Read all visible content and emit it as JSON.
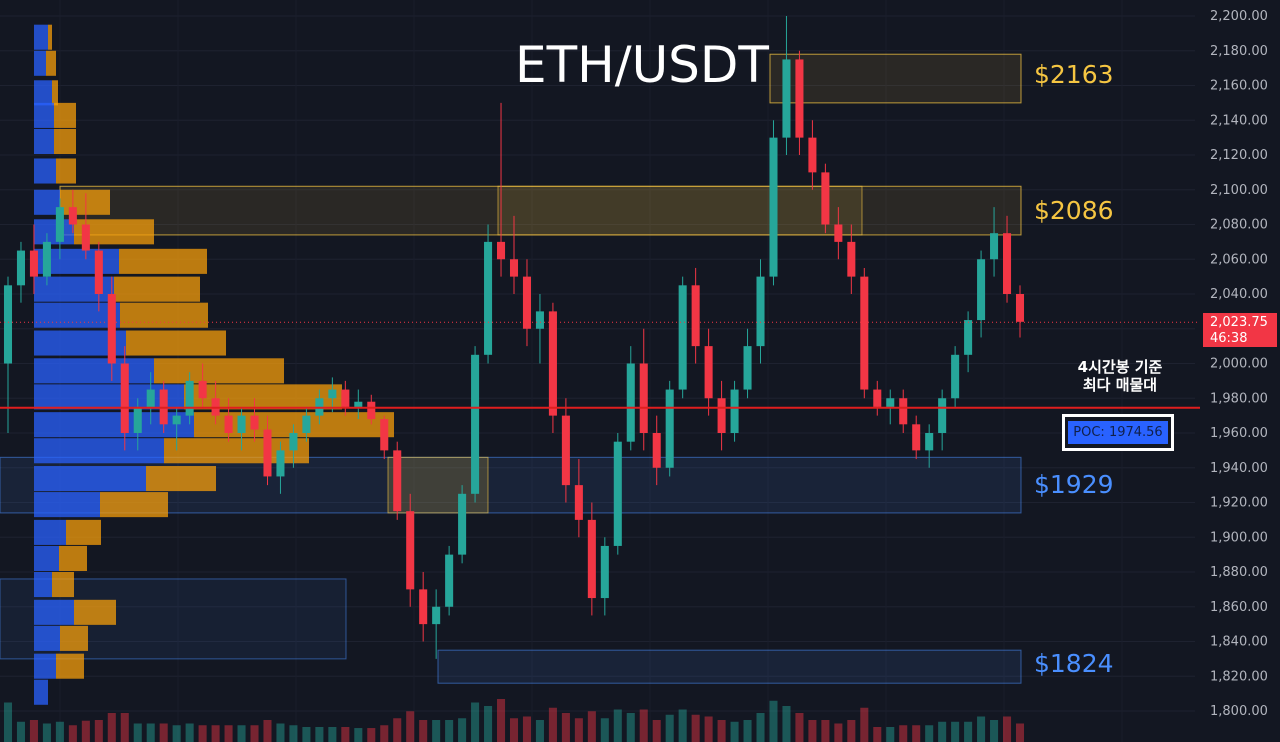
{
  "header": {
    "title": "ETH/USDT"
  },
  "zones": [
    {
      "label": "$2163",
      "low": 2150,
      "high": 2178,
      "color": "gold"
    },
    {
      "label": "$2086",
      "low": 2074,
      "high": 2102,
      "color": "gold"
    },
    {
      "label": "$1929",
      "low": 1914,
      "high": 1946,
      "color": "blue"
    },
    {
      "label": "$1824",
      "low": 1816,
      "high": 1835,
      "color": "blue"
    }
  ],
  "annotation": {
    "line1": "4시간봉 기준",
    "line2": "최다 매물대"
  },
  "poc": {
    "label": "POC: 1974.56",
    "value": 1974.56
  },
  "last_price": {
    "value": "2,023.75",
    "countdown": "46:38",
    "level": 2023.75
  },
  "colors": {
    "up": "#26a69a",
    "down": "#f23645",
    "poc_line": "#e01e1e",
    "profile_blue": "#2962ff",
    "profile_orange": "#f59e0b"
  },
  "chart_data": {
    "type": "candlestick",
    "y_axis": {
      "ylim": [
        1790,
        2205
      ],
      "ticks": [
        "2,200.00",
        "2,180.00",
        "2,160.00",
        "2,140.00",
        "2,120.00",
        "2,100.00",
        "2,080.00",
        "2,060.00",
        "2,040.00",
        "2,020.00",
        "2,000.00",
        "1,980.00",
        "1,960.00",
        "1,940.00",
        "1,920.00",
        "1,900.00",
        "1,880.00",
        "1,860.00",
        "1,840.00",
        "1,820.00",
        "1,800.00"
      ]
    },
    "candles": [
      [
        2000,
        2050,
        1960,
        2045
      ],
      [
        2045,
        2070,
        2035,
        2065
      ],
      [
        2065,
        2080,
        2040,
        2050
      ],
      [
        2050,
        2075,
        2045,
        2070
      ],
      [
        2070,
        2095,
        2060,
        2090
      ],
      [
        2090,
        2100,
        2075,
        2080
      ],
      [
        2080,
        2098,
        2060,
        2065
      ],
      [
        2065,
        2070,
        2030,
        2040
      ],
      [
        2040,
        2050,
        1990,
        2000
      ],
      [
        2000,
        2010,
        1950,
        1960
      ],
      [
        1960,
        1980,
        1950,
        1975
      ],
      [
        1975,
        1995,
        1965,
        1985
      ],
      [
        1985,
        1990,
        1960,
        1965
      ],
      [
        1965,
        1975,
        1950,
        1970
      ],
      [
        1970,
        1995,
        1965,
        1990
      ],
      [
        1990,
        2000,
        1975,
        1980
      ],
      [
        1980,
        1990,
        1965,
        1970
      ],
      [
        1970,
        1980,
        1955,
        1960
      ],
      [
        1960,
        1975,
        1950,
        1970
      ],
      [
        1970,
        1980,
        1955,
        1962
      ],
      [
        1962,
        1970,
        1930,
        1935
      ],
      [
        1935,
        1955,
        1925,
        1950
      ],
      [
        1950,
        1965,
        1940,
        1960
      ],
      [
        1960,
        1975,
        1955,
        1970
      ],
      [
        1970,
        1985,
        1965,
        1980
      ],
      [
        1980,
        1992,
        1972,
        1985
      ],
      [
        1985,
        1990,
        1970,
        1975
      ],
      [
        1975,
        1985,
        1968,
        1978
      ],
      [
        1978,
        1982,
        1965,
        1968
      ],
      [
        1968,
        1970,
        1945,
        1950
      ],
      [
        1950,
        1955,
        1910,
        1915
      ],
      [
        1915,
        1925,
        1860,
        1870
      ],
      [
        1870,
        1880,
        1840,
        1850
      ],
      [
        1850,
        1870,
        1830,
        1860
      ],
      [
        1860,
        1895,
        1855,
        1890
      ],
      [
        1890,
        1930,
        1885,
        1925
      ],
      [
        1925,
        2010,
        1920,
        2005
      ],
      [
        2005,
        2080,
        2000,
        2070
      ],
      [
        2070,
        2150,
        2050,
        2060
      ],
      [
        2060,
        2085,
        2040,
        2050
      ],
      [
        2050,
        2060,
        2010,
        2020
      ],
      [
        2020,
        2040,
        2000,
        2030
      ],
      [
        2030,
        2035,
        1960,
        1970
      ],
      [
        1970,
        1980,
        1920,
        1930
      ],
      [
        1930,
        1945,
        1900,
        1910
      ],
      [
        1910,
        1920,
        1855,
        1865
      ],
      [
        1865,
        1900,
        1855,
        1895
      ],
      [
        1895,
        1960,
        1890,
        1955
      ],
      [
        1955,
        2010,
        1950,
        2000
      ],
      [
        2000,
        2020,
        1950,
        1960
      ],
      [
        1960,
        1970,
        1930,
        1940
      ],
      [
        1940,
        1990,
        1935,
        1985
      ],
      [
        1985,
        2050,
        1980,
        2045
      ],
      [
        2045,
        2055,
        2000,
        2010
      ],
      [
        2010,
        2020,
        1970,
        1980
      ],
      [
        1980,
        1990,
        1950,
        1960
      ],
      [
        1960,
        1990,
        1955,
        1985
      ],
      [
        1985,
        2020,
        1980,
        2010
      ],
      [
        2010,
        2060,
        2000,
        2050
      ],
      [
        2050,
        2140,
        2045,
        2130
      ],
      [
        2130,
        2200,
        2120,
        2175
      ],
      [
        2175,
        2180,
        2120,
        2130
      ],
      [
        2130,
        2140,
        2100,
        2110
      ],
      [
        2110,
        2115,
        2075,
        2080
      ],
      [
        2080,
        2090,
        2060,
        2070
      ],
      [
        2070,
        2080,
        2040,
        2050
      ],
      [
        2050,
        2055,
        1980,
        1985
      ],
      [
        1985,
        1990,
        1970,
        1975
      ],
      [
        1975,
        1985,
        1965,
        1980
      ],
      [
        1980,
        1985,
        1960,
        1965
      ],
      [
        1965,
        1970,
        1945,
        1950
      ],
      [
        1950,
        1965,
        1940,
        1960
      ],
      [
        1960,
        1985,
        1950,
        1980
      ],
      [
        1980,
        2010,
        1975,
        2005
      ],
      [
        2005,
        2030,
        1995,
        2025
      ],
      [
        2025,
        2065,
        2015,
        2060
      ],
      [
        2060,
        2090,
        2050,
        2075
      ],
      [
        2075,
        2085,
        2035,
        2040
      ],
      [
        2040,
        2045,
        2015,
        2024
      ]
    ]
  }
}
